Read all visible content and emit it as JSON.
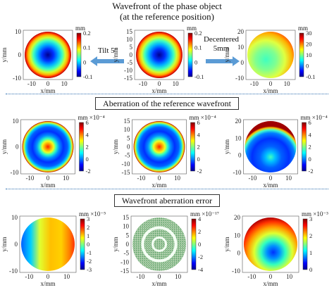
{
  "header": {
    "line1": "Wavefront of the phase object",
    "line2": "(at the reference position)"
  },
  "arrows": {
    "left_label": "Tilt 5°",
    "right_label_line1": "Decentered",
    "right_label_line2": "5mm",
    "color": "#5b9bd5"
  },
  "sections": {
    "aberration_title": "Aberration of the reference wavefront",
    "error_title": "Wavefront aberration error"
  },
  "axes": {
    "x_label": "x/mm",
    "y_label": "y/mm"
  },
  "panels": [
    {
      "id": "r1c1",
      "cb_unit": "mm",
      "cb_exp": "",
      "cb_ticks": [
        "0.2",
        "0.1",
        "0",
        "-0.1"
      ],
      "y_ticks": [
        "10",
        "0",
        "-10"
      ],
      "x_ticks": [
        "-10",
        "0",
        "10"
      ],
      "pattern": "bowl-small"
    },
    {
      "id": "r1c2",
      "cb_unit": "mm",
      "cb_exp": "",
      "cb_ticks": [
        "0.2",
        "0.1",
        "0",
        "-0.1"
      ],
      "y_ticks": [
        "15",
        "10",
        "5",
        "0",
        "-5",
        "-10",
        "-15"
      ],
      "x_ticks": [
        "-10",
        "0",
        "10"
      ],
      "pattern": "bowl"
    },
    {
      "id": "r1c3",
      "cb_unit": "mm",
      "cb_exp": "",
      "cb_ticks": [
        "30",
        "20",
        "10",
        "0",
        "-0.1"
      ],
      "y_ticks": [
        "20",
        "10",
        "0",
        "-10"
      ],
      "x_ticks": [
        "-10",
        "0",
        "10"
      ],
      "pattern": "shifted-bowl"
    },
    {
      "id": "r2c1",
      "cb_unit": "mm",
      "cb_exp": "×10⁻⁴",
      "cb_ticks": [
        "6",
        "4",
        "2",
        "0",
        "-2"
      ],
      "y_ticks": [
        "10",
        "0",
        "-10"
      ],
      "x_ticks": [
        "-10",
        "0",
        "10"
      ],
      "pattern": "ring"
    },
    {
      "id": "r2c2",
      "cb_unit": "mm",
      "cb_exp": "×10⁻⁴",
      "cb_ticks": [
        "6",
        "4",
        "2",
        "0",
        "-2"
      ],
      "y_ticks": [
        "15",
        "10",
        "5",
        "0",
        "-5",
        "-10",
        "-15"
      ],
      "x_ticks": [
        "-10",
        "0",
        "10"
      ],
      "pattern": "ring"
    },
    {
      "id": "r2c3",
      "cb_unit": "mm",
      "cb_exp": "×10⁻⁴",
      "cb_ticks": [
        "6",
        "4",
        "2",
        "0",
        "-2"
      ],
      "y_ticks": [
        "20",
        "10",
        "0",
        "-10"
      ],
      "x_ticks": [
        "-10",
        "0",
        "10"
      ],
      "pattern": "ring-shifted"
    },
    {
      "id": "r3c1",
      "cb_unit": "mm",
      "cb_exp": "×10⁻⁵",
      "cb_ticks": [
        "3",
        "2",
        "1",
        "0",
        "-1",
        "-2",
        "-3"
      ],
      "y_ticks": [
        "10",
        "0",
        "-10"
      ],
      "x_ticks": [
        "-10",
        "0",
        "10"
      ],
      "pattern": "tilt-error"
    },
    {
      "id": "r3c2",
      "cb_unit": "mm",
      "cb_exp": "×10⁻¹⁷",
      "cb_ticks": [
        "4",
        "2",
        "0",
        "-2",
        "-4"
      ],
      "y_ticks": [
        "15",
        "10",
        "5",
        "0",
        "-5",
        "-10",
        "-15"
      ],
      "x_ticks": [
        "-10",
        "0",
        "10"
      ],
      "pattern": "noise-ring"
    },
    {
      "id": "r3c3",
      "cb_unit": "mm",
      "cb_exp": "×10⁻³",
      "cb_ticks": [
        "3",
        "2",
        "1",
        "0"
      ],
      "y_ticks": [
        "20",
        "10",
        "0",
        "-10"
      ],
      "x_ticks": [
        "-10",
        "0",
        "10"
      ],
      "pattern": "decenter-error"
    }
  ]
}
